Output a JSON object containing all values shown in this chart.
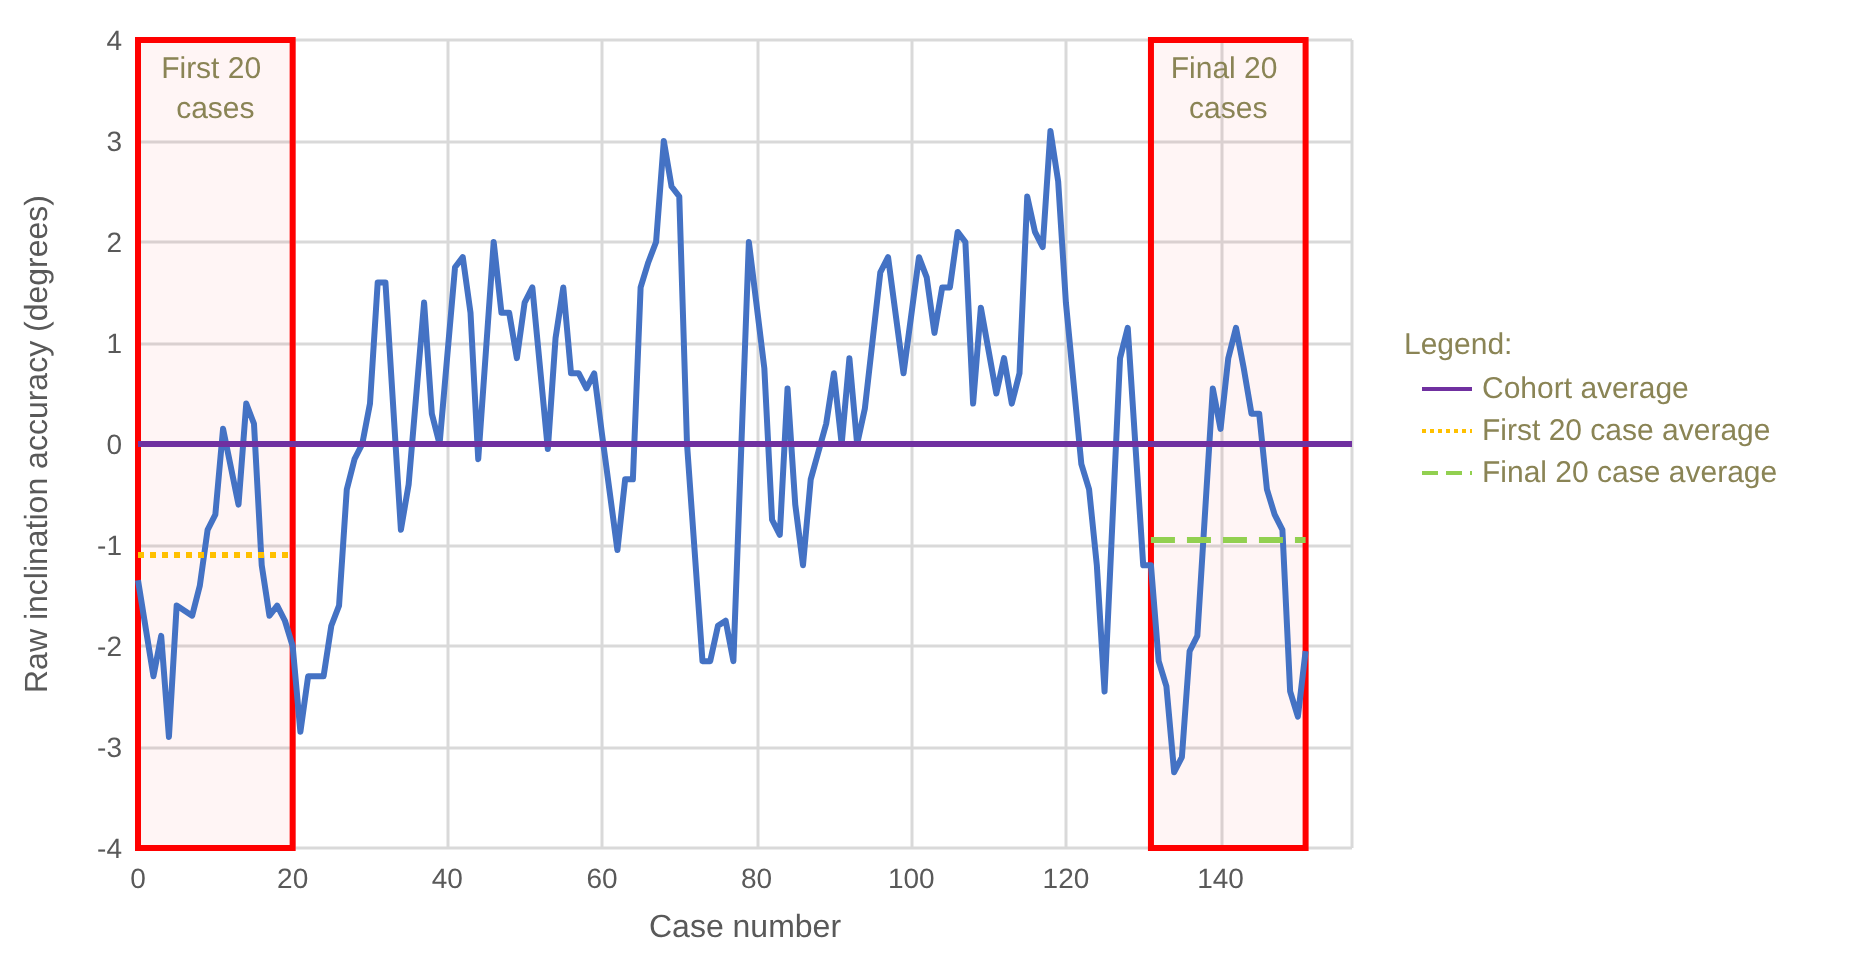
{
  "chart_data": {
    "type": "line",
    "xlabel": "Case number",
    "ylabel": "Raw inclination accuracy (degrees)",
    "legend_title": "Legend:",
    "xlim": [
      0,
      157
    ],
    "xticks": [
      0,
      20,
      40,
      60,
      80,
      100,
      120,
      140
    ],
    "ylim": [
      -4,
      4
    ],
    "yticks": [
      -4,
      -3,
      -2,
      -1,
      0,
      1,
      2,
      3,
      4
    ],
    "grid": true,
    "legend": "right",
    "marker": "none",
    "bands": [
      {
        "axis": "x",
        "from": 0,
        "to": 20,
        "label": "First 20 cases",
        "color": "#ff0000"
      },
      {
        "axis": "x",
        "from": 131,
        "to": 151,
        "label": "Final 20 cases",
        "color": "#ff0000"
      }
    ],
    "series": [
      {
        "color": "#4472c4",
        "line_style": "solid",
        "x": [
          0,
          2,
          3,
          4,
          5,
          7,
          8,
          9,
          10,
          11,
          13,
          14,
          15,
          16,
          17,
          18,
          19,
          20,
          21,
          22,
          24,
          25,
          26,
          27,
          28,
          29,
          30,
          31,
          32,
          34,
          35,
          37,
          38,
          39,
          41,
          42,
          43,
          44,
          46,
          47,
          48,
          49,
          50,
          51,
          53,
          54,
          55,
          56,
          57,
          58,
          59,
          60,
          62,
          63,
          64,
          65,
          66,
          67,
          68,
          69,
          70,
          71,
          73,
          74,
          75,
          76,
          77,
          79,
          81,
          82,
          83,
          84,
          85,
          86,
          87,
          89,
          90,
          91,
          92,
          93,
          94,
          96,
          97,
          99,
          101,
          102,
          103,
          104,
          105,
          106,
          107,
          108,
          109,
          111,
          112,
          113,
          114,
          115,
          116,
          117,
          118,
          119,
          120,
          122,
          123,
          124,
          125,
          127,
          128,
          130,
          131,
          132,
          133,
          134,
          135,
          136,
          137,
          139,
          140,
          141,
          142,
          143,
          144,
          145,
          146,
          147,
          148,
          149,
          150,
          151
        ],
        "values": [
          -1.35,
          -2.3,
          -1.9,
          -2.9,
          -1.6,
          -1.7,
          -1.4,
          -0.85,
          -0.7,
          0.15,
          -0.6,
          0.4,
          0.2,
          -1.2,
          -1.7,
          -1.6,
          -1.75,
          -2.0,
          -2.85,
          -2.3,
          -2.3,
          -1.8,
          -1.6,
          -0.45,
          -0.15,
          0.0,
          0.4,
          1.6,
          1.6,
          -0.85,
          -0.4,
          1.4,
          0.3,
          0.0,
          1.75,
          1.85,
          1.3,
          -0.15,
          2.0,
          1.3,
          1.3,
          0.85,
          1.4,
          1.55,
          -0.05,
          1.05,
          1.55,
          0.7,
          0.7,
          0.55,
          0.7,
          0.1,
          -1.05,
          -0.35,
          -0.35,
          1.55,
          1.8,
          2.0,
          3.0,
          2.55,
          2.45,
          0.0,
          -2.15,
          -2.15,
          -1.8,
          -1.75,
          -2.15,
          2.0,
          0.75,
          -0.75,
          -0.9,
          0.55,
          -0.6,
          -1.2,
          -0.35,
          0.2,
          0.7,
          0.0,
          0.85,
          0.0,
          0.35,
          1.7,
          1.85,
          0.7,
          1.85,
          1.65,
          1.1,
          1.55,
          1.55,
          2.1,
          2.0,
          0.4,
          1.35,
          0.5,
          0.85,
          0.4,
          0.7,
          2.45,
          2.1,
          1.95,
          3.1,
          2.6,
          1.4,
          -0.2,
          -0.45,
          -1.2,
          -2.45,
          0.85,
          1.15,
          -1.2,
          -1.2,
          -2.15,
          -2.4,
          -3.25,
          -3.1,
          -2.05,
          -1.9,
          0.55,
          0.15,
          0.85,
          1.15,
          0.75,
          0.3,
          0.3,
          -0.45,
          -0.7,
          -0.85,
          -2.45,
          -2.7,
          -2.05
        ]
      },
      {
        "name": "Cohort average",
        "color": "#7030a0",
        "line_style": "solid",
        "x": [
          0,
          157
        ],
        "values": [
          0,
          0
        ]
      },
      {
        "name": "First 20 case average",
        "color": "#ffc000",
        "line_style": "dotted",
        "x": [
          0,
          20
        ],
        "values": [
          -1.1,
          -1.1
        ]
      },
      {
        "name": "Final 20 case average",
        "color": "#92d050",
        "line_style": "dashed",
        "x": [
          131,
          151
        ],
        "values": [
          -0.95,
          -0.95
        ]
      }
    ]
  }
}
